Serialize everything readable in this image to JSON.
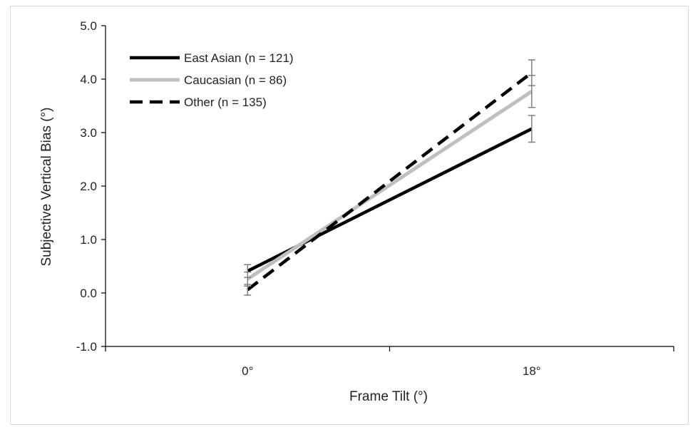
{
  "chart_data": {
    "type": "line",
    "title": "",
    "xlabel": "Frame Tilt (°)",
    "ylabel": "Subjective Vertical Bias (°)",
    "categories": [
      "0°",
      "18°"
    ],
    "ylim": [
      -1.0,
      5.0
    ],
    "yticks": [
      -1.0,
      0.0,
      1.0,
      2.0,
      3.0,
      4.0,
      5.0
    ],
    "ytick_labels": [
      "-1.0",
      "0.0",
      "1.0",
      "2.0",
      "3.0",
      "4.0",
      "5.0"
    ],
    "grid": false,
    "legend_position": "top-left",
    "series": [
      {
        "name": "East Asian (n = 121)",
        "values": [
          0.41,
          3.07
        ],
        "error": [
          0.12,
          0.25
        ],
        "color": "#000000",
        "style": "solid"
      },
      {
        "name": "Caucasian (n = 86)",
        "values": [
          0.26,
          3.77
        ],
        "error": [
          0.13,
          0.3
        ],
        "color": "#bfbfbf",
        "style": "solid"
      },
      {
        "name": "Other (n = 135)",
        "values": [
          0.06,
          4.12
        ],
        "error": [
          0.1,
          0.24
        ],
        "color": "#000000",
        "style": "dashed"
      }
    ]
  }
}
